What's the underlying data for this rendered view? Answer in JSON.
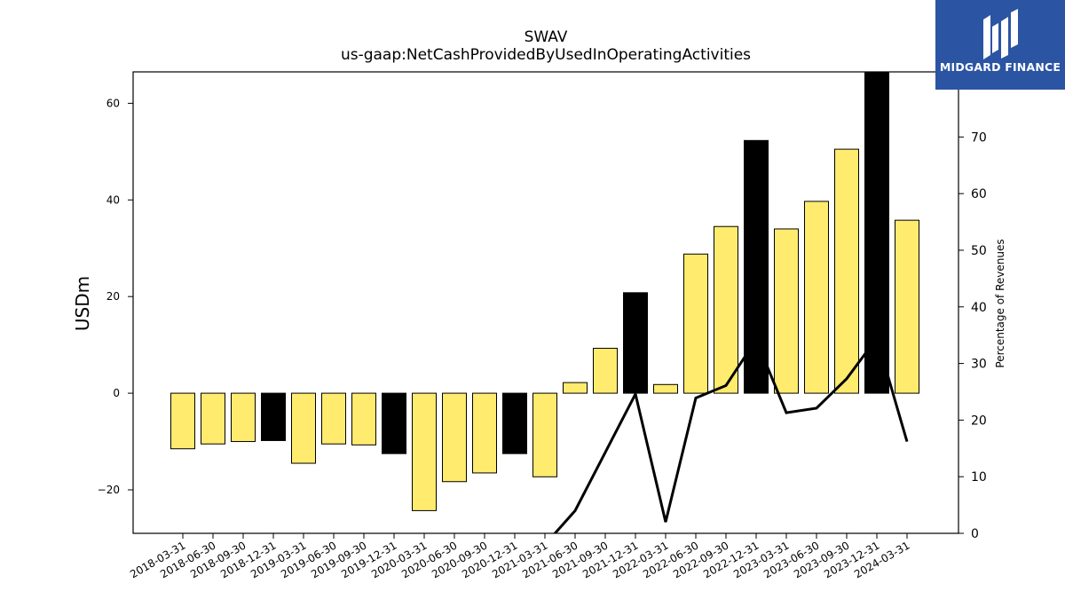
{
  "chart_data": {
    "type": "bar",
    "title": "SWAV",
    "subtitle": "us-gaap:NetCashProvidedByUsedInOperatingActivities",
    "ylabel": "USDm",
    "y2label": "Percentage of Revenues",
    "ylim": [
      -29,
      66.5
    ],
    "y2lim": [
      0,
      81.5
    ],
    "yticks": [
      -20,
      0,
      20,
      40,
      60
    ],
    "y2ticks": [
      0,
      10,
      20,
      30,
      40,
      50,
      60,
      70
    ],
    "categories": [
      "2018-03-31",
      "2018-06-30",
      "2018-09-30",
      "2018-12-31",
      "2019-03-31",
      "2019-06-30",
      "2019-09-30",
      "2019-12-31",
      "2020-03-31",
      "2020-06-30",
      "2020-09-30",
      "2020-12-31",
      "2021-03-31",
      "2021-06-30",
      "2021-09-30",
      "2021-12-31",
      "2022-03-31",
      "2022-06-30",
      "2022-09-30",
      "2022-12-31",
      "2023-03-31",
      "2023-06-30",
      "2023-09-30",
      "2023-12-31",
      "2024-03-31"
    ],
    "values": [
      -11.5,
      -10.5,
      -10,
      -9.8,
      -14.5,
      -10.5,
      -10.7,
      -12.5,
      -24.3,
      -18.3,
      -16.5,
      -12.5,
      -17.3,
      2.2,
      9.3,
      20.8,
      1.8,
      28.8,
      34.5,
      52.3,
      34,
      39.7,
      50.5,
      66.5,
      35.8
    ],
    "highlight": [
      false,
      false,
      false,
      true,
      false,
      false,
      false,
      true,
      false,
      false,
      false,
      true,
      false,
      false,
      false,
      true,
      false,
      false,
      false,
      true,
      false,
      false,
      false,
      true,
      false
    ],
    "bar_color": "#ffeb6e",
    "highlight_color": "#000000",
    "line_series": {
      "values": [
        null,
        null,
        null,
        null,
        null,
        null,
        null,
        null,
        null,
        null,
        null,
        null,
        -2,
        4,
        14.3,
        24.6,
        2,
        23.9,
        26.1,
        34.2,
        21.3,
        22.1,
        27.3,
        34.5,
        16.2
      ],
      "color": "#000000"
    },
    "grid": false
  },
  "logo": {
    "text": "MIDGARD FINANCE",
    "color": "#2b54a3"
  }
}
